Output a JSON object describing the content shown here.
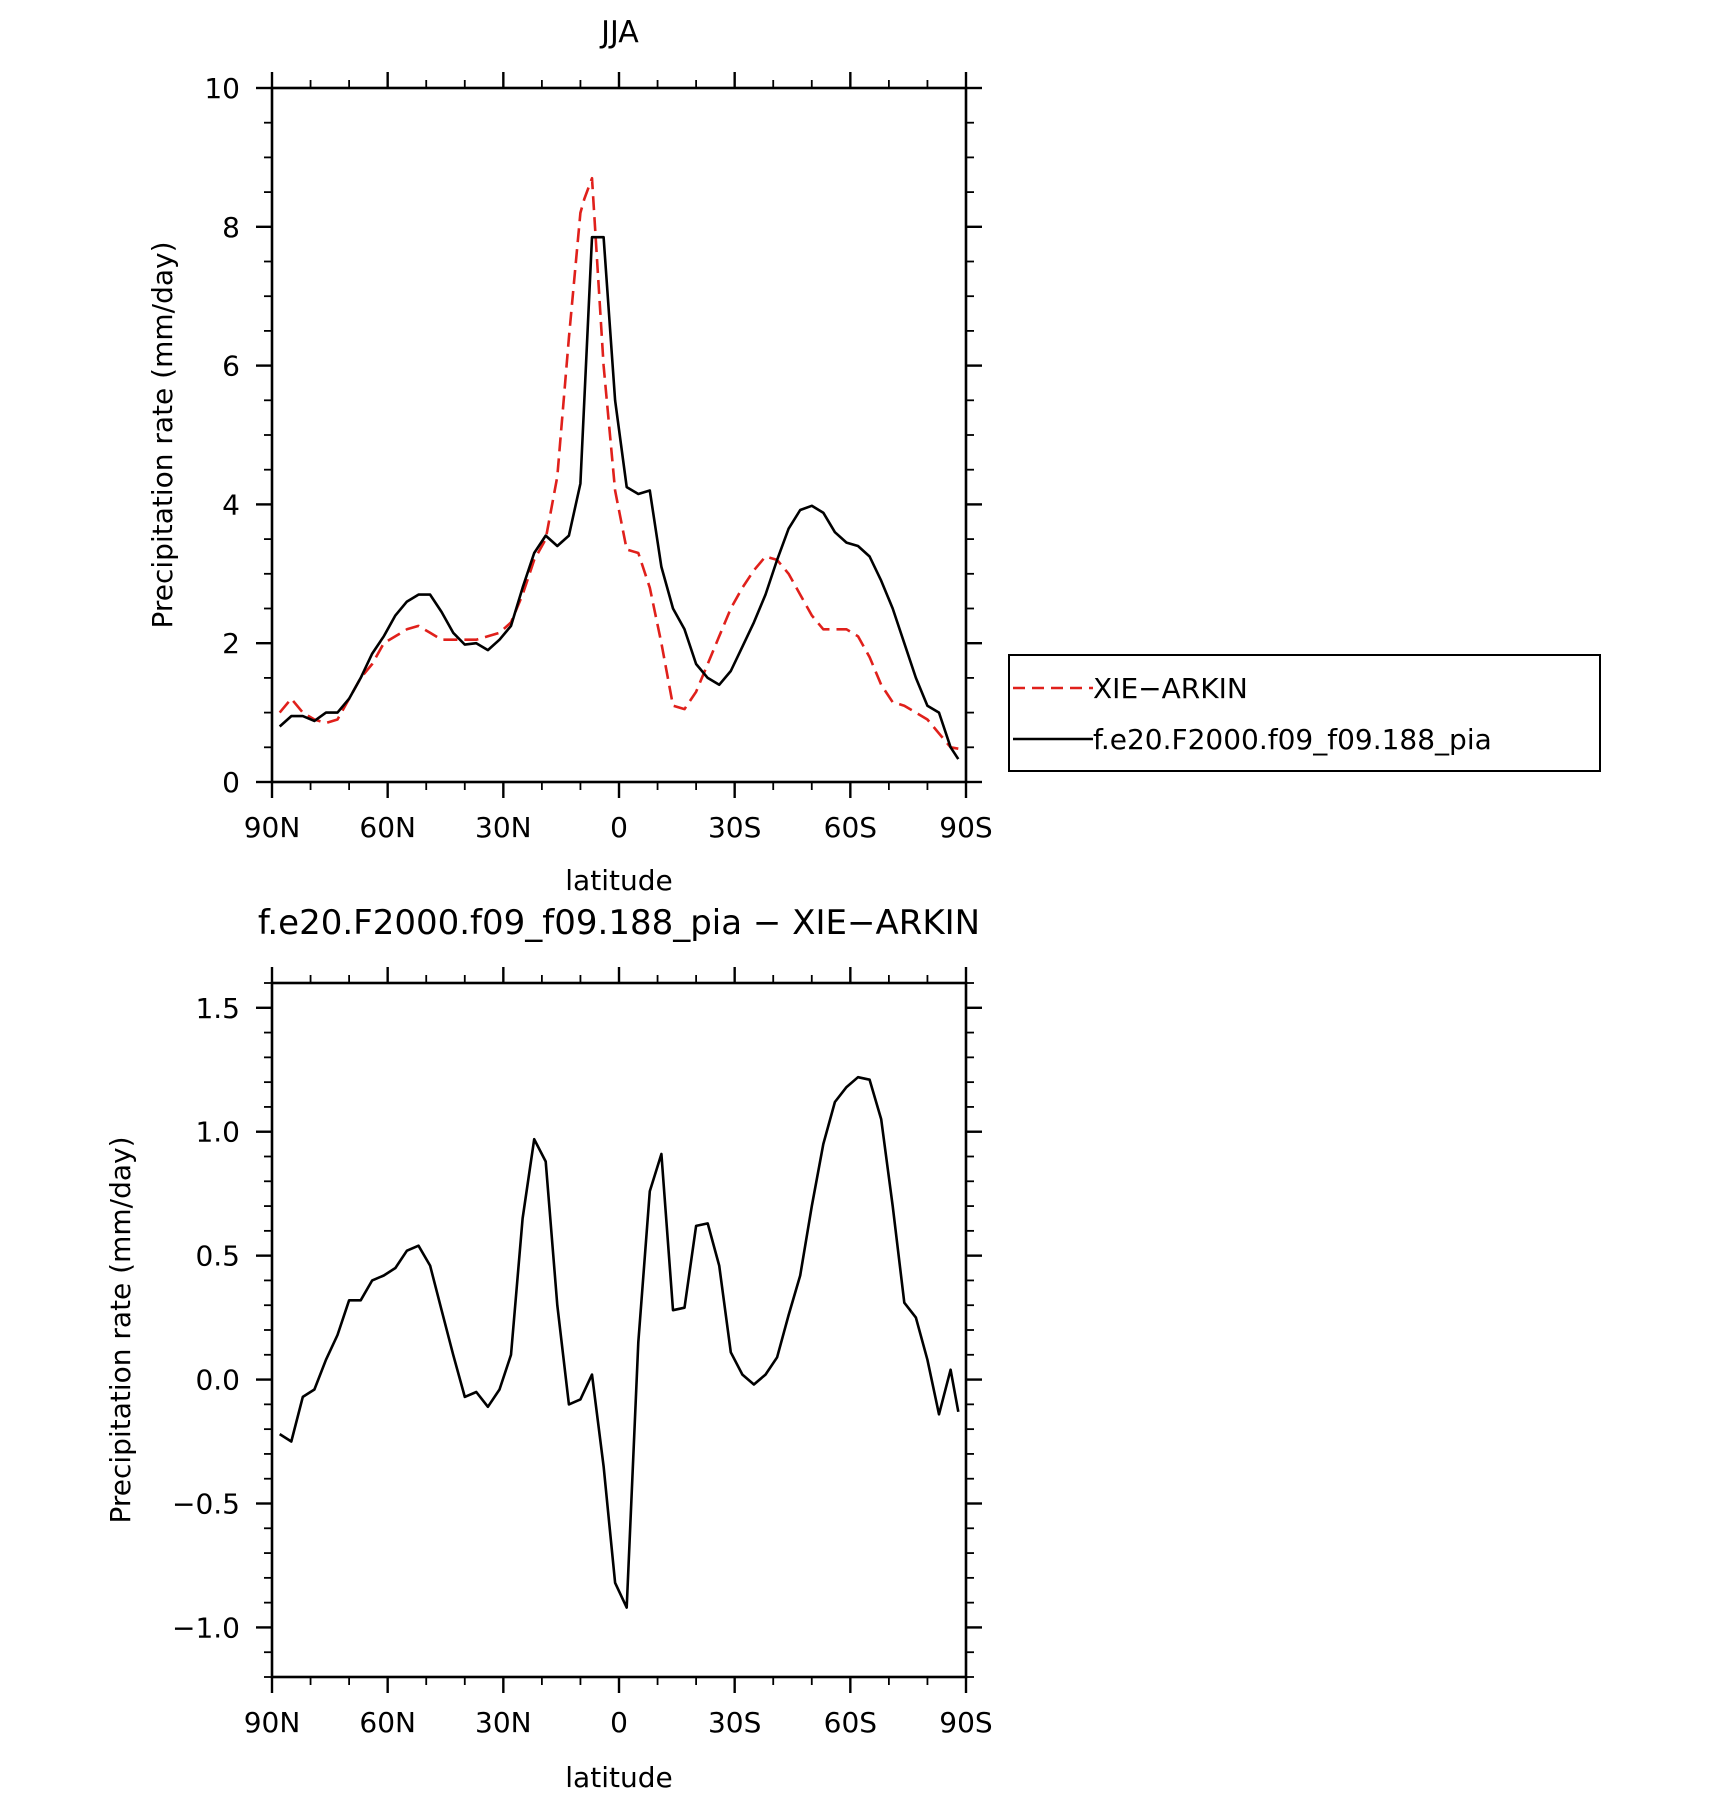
{
  "chart_data": [
    {
      "type": "line",
      "title": "JJA",
      "xlabel": "latitude",
      "ylabel": "Precipitation rate (mm/day)",
      "xlim": [
        90,
        -90
      ],
      "ylim": [
        0,
        10
      ],
      "x_tick_values": [
        90,
        60,
        30,
        0,
        -30,
        -60,
        -90
      ],
      "x_tick_labels": [
        "90N",
        "60N",
        "30N",
        "0",
        "30S",
        "60S",
        "90S"
      ],
      "y_tick_values": [
        0,
        2,
        4,
        6,
        8,
        10
      ],
      "y_tick_labels": [
        "0",
        "2",
        "4",
        "6",
        "8",
        "10"
      ],
      "legend_position": "right",
      "series": [
        {
          "name": "XIE−ARKIN",
          "color": "#e0201b",
          "dash": "dashed",
          "x": [
            88,
            85,
            82,
            79,
            76,
            73,
            70,
            67,
            64,
            61,
            58,
            55,
            52,
            49,
            46,
            43,
            40,
            37,
            34,
            31,
            28,
            25,
            22,
            19,
            16,
            13,
            10,
            9,
            7,
            4,
            1,
            -2,
            -5,
            -8,
            -11,
            -14,
            -17,
            -20,
            -23,
            -26,
            -29,
            -32,
            -35,
            -38,
            -41,
            -44,
            -47,
            -50,
            -53,
            -56,
            -59,
            -62,
            -65,
            -68,
            -71,
            -74,
            -77,
            -80,
            -83,
            -86,
            -88
          ],
          "y": [
            1.0,
            1.2,
            1.0,
            0.9,
            0.85,
            0.9,
            1.2,
            1.5,
            1.7,
            2.0,
            2.1,
            2.2,
            2.25,
            2.15,
            2.05,
            2.05,
            2.05,
            2.05,
            2.1,
            2.15,
            2.3,
            2.7,
            3.2,
            3.5,
            4.4,
            6.4,
            8.2,
            8.4,
            8.7,
            6.0,
            4.2,
            3.35,
            3.3,
            2.8,
            2.0,
            1.1,
            1.05,
            1.3,
            1.7,
            2.1,
            2.5,
            2.8,
            3.05,
            3.25,
            3.2,
            3.0,
            2.7,
            2.4,
            2.2,
            2.2,
            2.2,
            2.1,
            1.8,
            1.4,
            1.15,
            1.1,
            1.0,
            0.9,
            0.7,
            0.5,
            0.48
          ]
        },
        {
          "name": "f.e20.F2000.f09_f09.188_pia",
          "color": "#000000",
          "dash": "solid",
          "x": [
            88,
            85,
            82,
            79,
            76,
            73,
            70,
            67,
            64,
            61,
            58,
            55,
            52,
            49,
            46,
            43,
            40,
            37,
            34,
            31,
            28,
            25,
            22,
            19,
            16,
            13,
            10,
            7,
            4,
            1,
            -2,
            -5,
            -8,
            -11,
            -14,
            -17,
            -20,
            -23,
            -26,
            -29,
            -32,
            -35,
            -38,
            -41,
            -44,
            -47,
            -50,
            -53,
            -56,
            -59,
            -62,
            -65,
            -68,
            -71,
            -74,
            -77,
            -80,
            -83,
            -86,
            -88
          ],
          "y": [
            0.8,
            0.95,
            0.95,
            0.88,
            1.0,
            1.0,
            1.2,
            1.5,
            1.85,
            2.1,
            2.4,
            2.6,
            2.7,
            2.7,
            2.45,
            2.15,
            1.98,
            2.0,
            1.9,
            2.05,
            2.25,
            2.8,
            3.3,
            3.55,
            3.4,
            3.55,
            4.3,
            7.85,
            7.85,
            5.5,
            4.25,
            4.15,
            4.2,
            3.1,
            2.5,
            2.2,
            1.7,
            1.5,
            1.4,
            1.6,
            1.95,
            2.3,
            2.7,
            3.2,
            3.65,
            3.92,
            3.98,
            3.88,
            3.6,
            3.45,
            3.4,
            3.25,
            2.9,
            2.5,
            2.0,
            1.5,
            1.1,
            1.0,
            0.5,
            0.33
          ]
        }
      ]
    },
    {
      "type": "line",
      "title": "f.e20.F2000.f09_f09.188_pia − XIE−ARKIN",
      "xlabel": "latitude",
      "ylabel": "Precipitation rate (mm/day)",
      "xlim": [
        90,
        -90
      ],
      "ylim": [
        -1.2,
        1.6
      ],
      "x_tick_values": [
        90,
        60,
        30,
        0,
        -30,
        -60,
        -90
      ],
      "x_tick_labels": [
        "90N",
        "60N",
        "30N",
        "0",
        "30S",
        "60S",
        "90S"
      ],
      "y_tick_values": [
        1.5,
        1.0,
        0.5,
        0.0,
        -0.5,
        -1.0
      ],
      "y_tick_labels": [
        "1.5",
        "1.0",
        "0.5",
        "0.0",
        "−0.5",
        "−1.0"
      ],
      "series": [
        {
          "color": "#000000",
          "dash": "solid",
          "x": [
            88,
            85,
            82,
            79,
            76,
            73,
            70,
            67,
            64,
            61,
            58,
            55,
            52,
            49,
            46,
            43,
            40,
            37,
            34,
            31,
            28,
            25,
            22,
            19,
            16,
            13,
            10,
            7,
            4,
            1,
            -2,
            -5,
            -8,
            -11,
            -14,
            -17,
            -20,
            -23,
            -26,
            -29,
            -32,
            -35,
            -38,
            -41,
            -44,
            -47,
            -50,
            -53,
            -56,
            -59,
            -62,
            -65,
            -68,
            -71,
            -74,
            -77,
            -80,
            -83,
            -86,
            -88
          ],
          "y": [
            -0.22,
            -0.25,
            -0.07,
            -0.04,
            0.08,
            0.18,
            0.32,
            0.32,
            0.4,
            0.42,
            0.45,
            0.52,
            0.54,
            0.46,
            0.28,
            0.1,
            -0.07,
            -0.05,
            -0.11,
            -0.04,
            0.1,
            0.65,
            0.97,
            0.88,
            0.3,
            -0.1,
            -0.08,
            0.02,
            -0.35,
            -0.82,
            -0.92,
            0.15,
            0.76,
            0.91,
            0.28,
            0.29,
            0.62,
            0.63,
            0.46,
            0.11,
            0.02,
            -0.02,
            0.02,
            0.09,
            0.26,
            0.42,
            0.7,
            0.95,
            1.12,
            1.18,
            1.22,
            1.21,
            1.05,
            0.7,
            0.31,
            0.25,
            0.08,
            -0.14,
            0.04,
            -0.13
          ]
        }
      ]
    }
  ]
}
